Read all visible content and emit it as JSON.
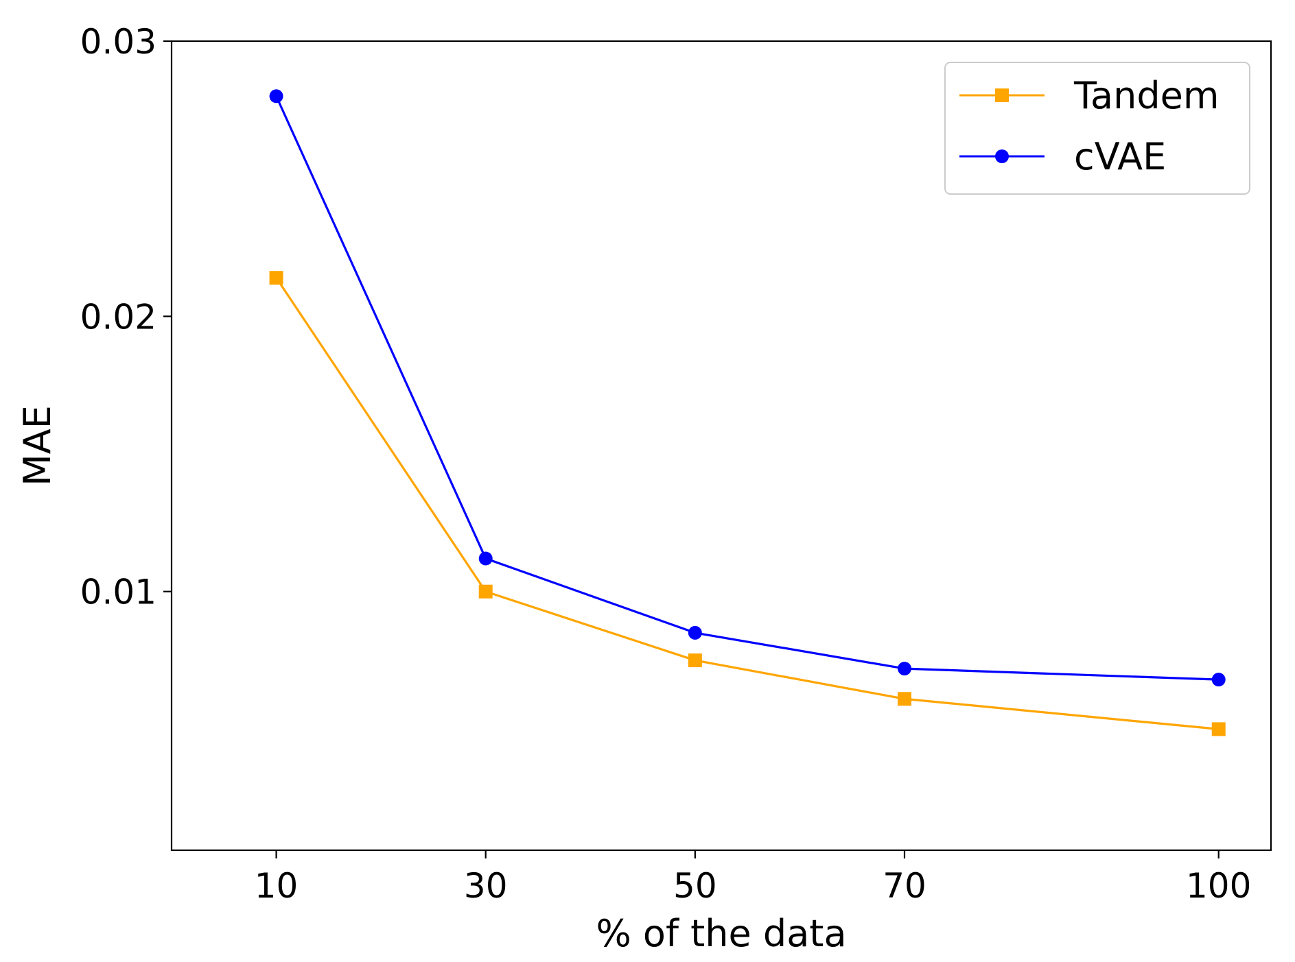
{
  "chart_data": {
    "type": "line",
    "title": "",
    "xlabel": "% of the data",
    "ylabel": "MAE",
    "x": [
      10,
      30,
      50,
      70,
      100
    ],
    "x_tick_labels": [
      "10",
      "30",
      "50",
      "70",
      "100"
    ],
    "xlim": [
      0,
      105
    ],
    "ylim": [
      0.0006,
      0.03
    ],
    "y_ticks": [
      0.01,
      0.02,
      0.03
    ],
    "y_tick_labels": [
      "0.01",
      "0.02",
      "0.03"
    ],
    "grid": false,
    "legend_position": "top-right",
    "series": [
      {
        "name": "Tandem",
        "color": "#FFA500",
        "marker": "square",
        "values": [
          0.0214,
          0.01,
          0.0075,
          0.0061,
          0.005
        ]
      },
      {
        "name": "cVAE",
        "color": "#0000FF",
        "marker": "circle",
        "values": [
          0.028,
          0.0112,
          0.0085,
          0.0072,
          0.0068
        ]
      }
    ]
  }
}
